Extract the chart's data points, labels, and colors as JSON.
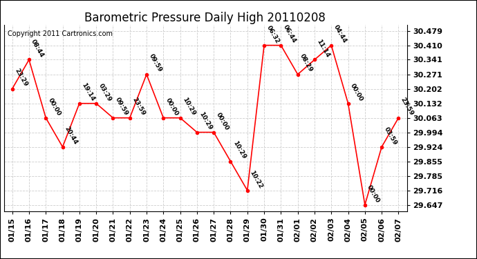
{
  "title": "Barometric Pressure Daily High 20110208",
  "copyright": "Copyright 2011 Cartronics.com",
  "dates": [
    "01/15",
    "01/16",
    "01/17",
    "01/18",
    "01/19",
    "01/20",
    "01/21",
    "01/22",
    "01/23",
    "01/24",
    "01/25",
    "01/26",
    "01/27",
    "01/28",
    "01/29",
    "01/30",
    "01/31",
    "02/01",
    "02/02",
    "02/03",
    "02/04",
    "02/05",
    "02/06",
    "02/07"
  ],
  "values": [
    30.202,
    30.341,
    30.063,
    29.924,
    30.132,
    30.132,
    30.063,
    30.063,
    30.271,
    30.063,
    30.063,
    29.994,
    29.994,
    29.855,
    29.716,
    30.41,
    30.41,
    30.271,
    30.341,
    30.41,
    30.132,
    29.647,
    29.924,
    30.063
  ],
  "labels": [
    "23:29",
    "08:44",
    "00:00",
    "20:44",
    "19:14",
    "03:29",
    "09:59",
    "23:59",
    "09:59",
    "00:00",
    "10:29",
    "10:29",
    "00:00",
    "10:29",
    "10:22",
    "06:32",
    "06:44",
    "08:29",
    "11:14",
    "04:44",
    "00:00",
    "00:00",
    "03:59",
    "23:59"
  ],
  "yticks": [
    29.647,
    29.716,
    29.785,
    29.855,
    29.924,
    29.994,
    30.063,
    30.132,
    30.202,
    30.271,
    30.341,
    30.41,
    30.479
  ],
  "ylim": [
    29.617,
    30.509
  ],
  "line_color": "red",
  "marker_color": "red",
  "bg_color": "white",
  "grid_color": "#cccccc",
  "title_fontsize": 12,
  "label_fontsize": 6.5,
  "tick_fontsize": 8,
  "copyright_fontsize": 7
}
